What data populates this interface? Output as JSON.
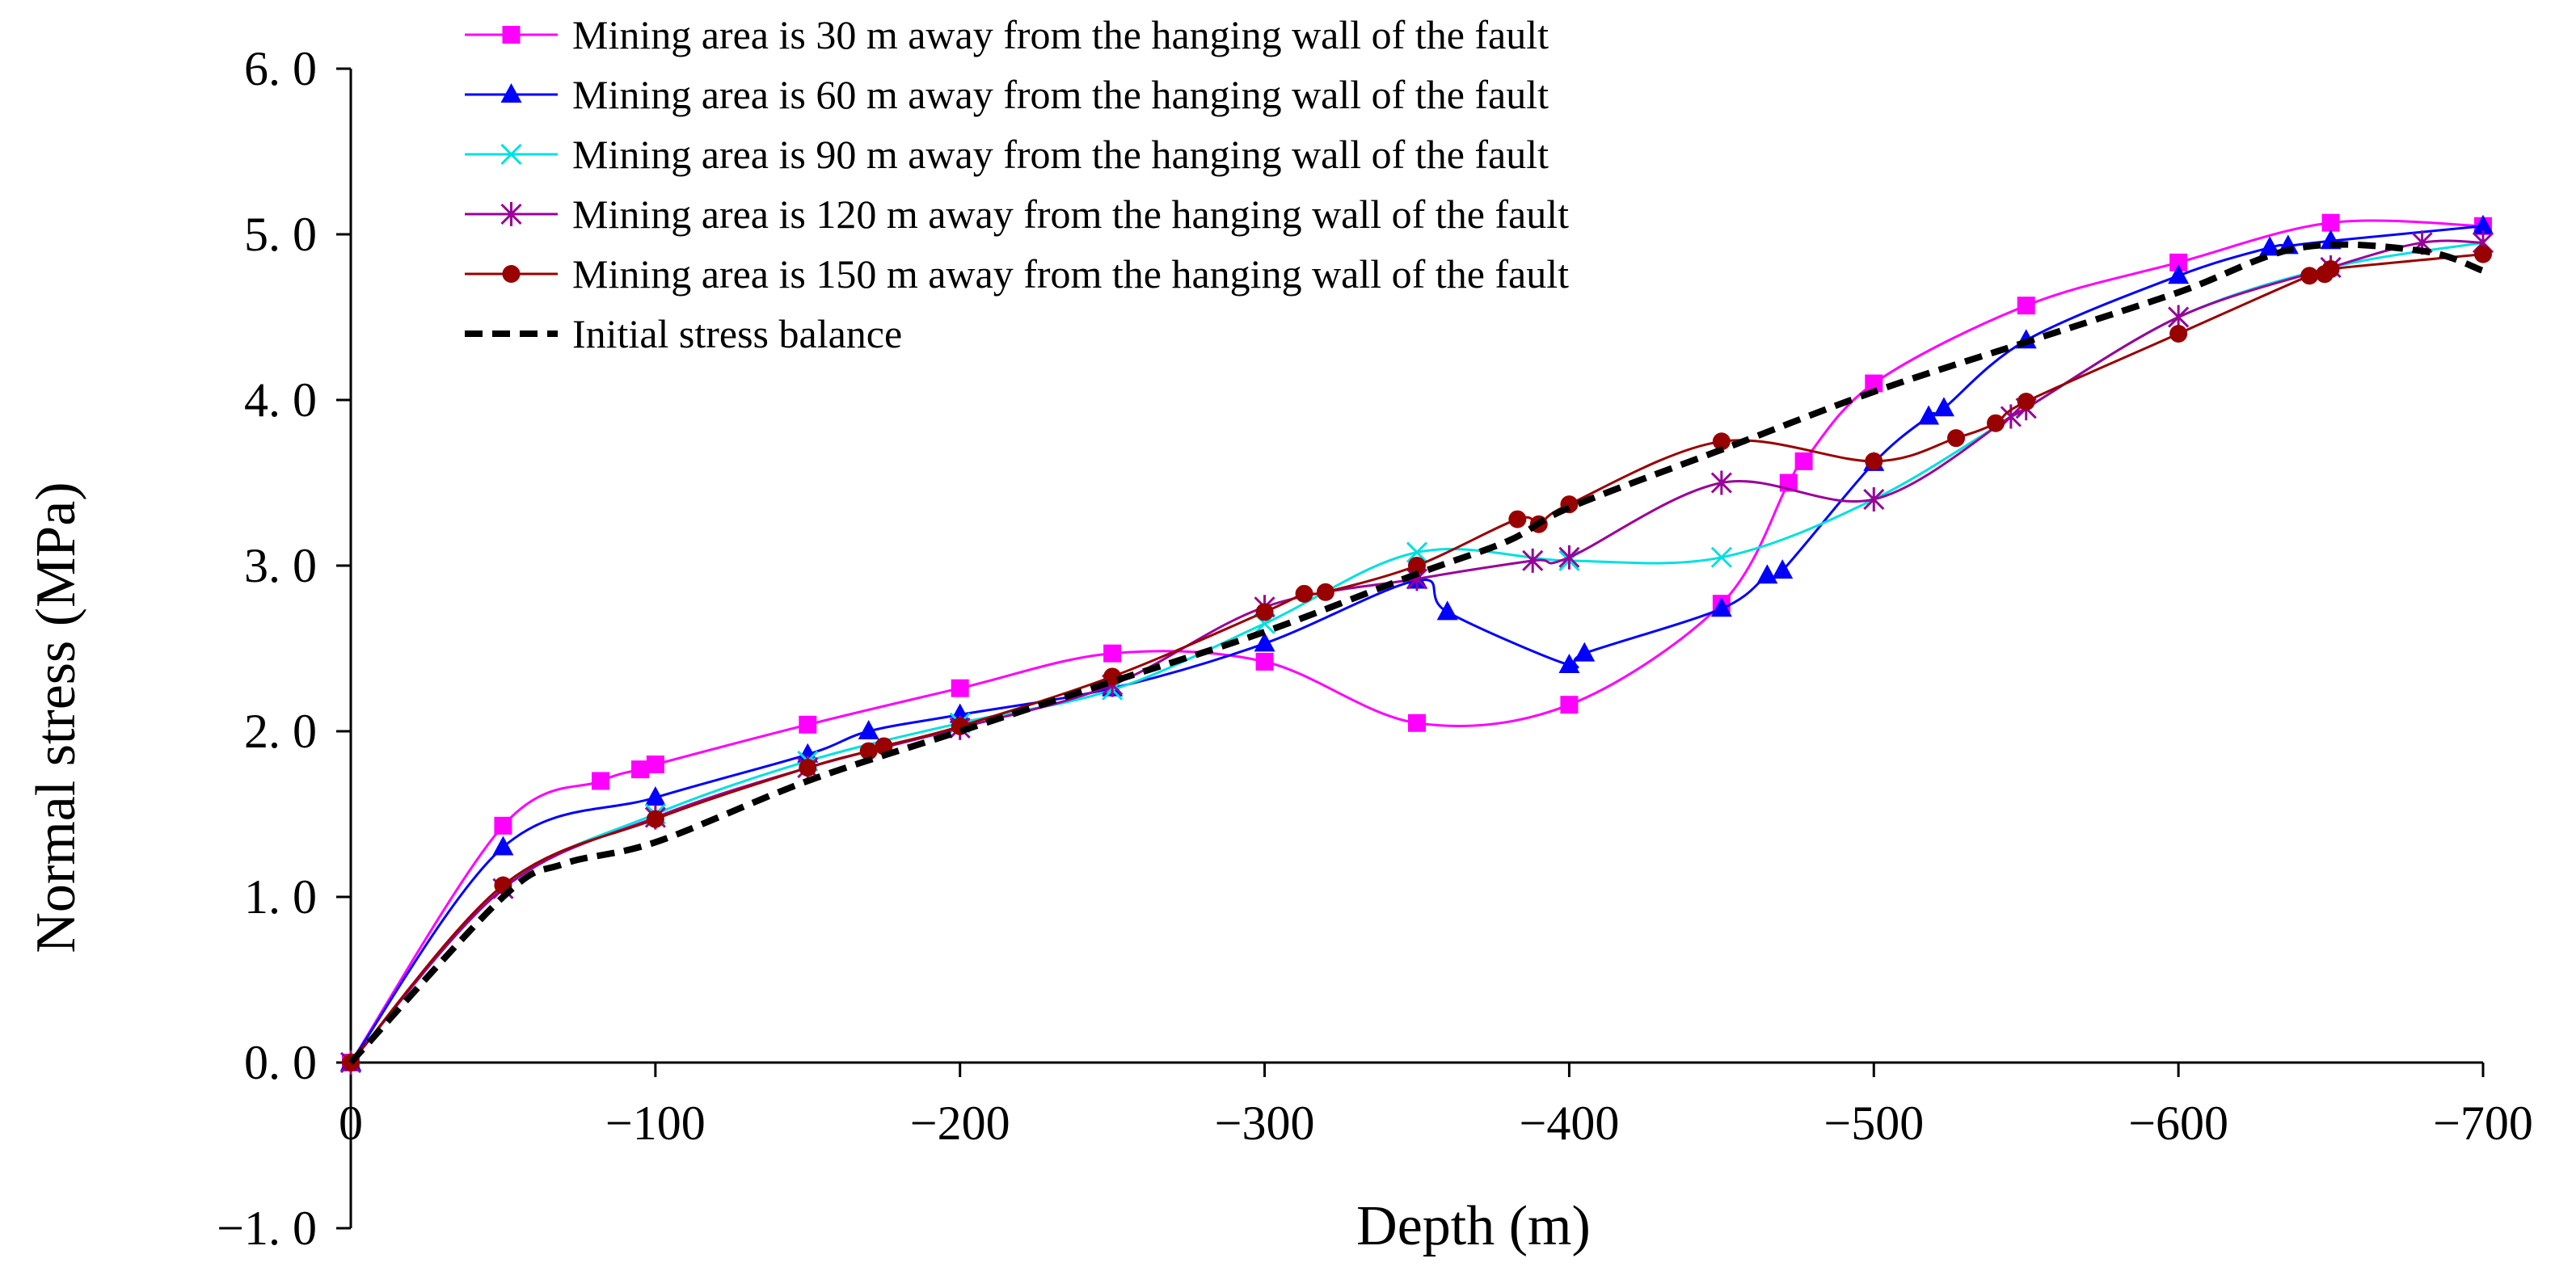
{
  "chart_data": {
    "type": "line",
    "title": "",
    "xlabel": "Depth (m)",
    "ylabel": "Normal stress (MPa)",
    "xlim": [
      0,
      -700
    ],
    "ylim": [
      -1.0,
      6.0
    ],
    "x_ticks": [
      0,
      -100,
      -200,
      -300,
      -400,
      -500,
      -600,
      -700
    ],
    "x_tick_labels": [
      "0",
      "−100",
      "−200",
      "−300",
      "−400",
      "−500",
      "−600",
      "−700"
    ],
    "y_ticks": [
      -1.0,
      0.0,
      1.0,
      2.0,
      3.0,
      4.0,
      5.0,
      6.0
    ],
    "y_tick_labels": [
      "−1. 0",
      "0. 0",
      "1. 0",
      "2. 0",
      "3. 0",
      "4. 0",
      "5. 0",
      "6. 0"
    ],
    "grid": false,
    "legend_position": "top-left",
    "series": [
      {
        "name": "Mining area is 30 m away from the hanging wall of the fault",
        "color": "#ff00ff",
        "marker": "square",
        "dashed": false,
        "x": [
          0,
          -50,
          -82,
          -95,
          -100,
          -150,
          -200,
          -250,
          -300,
          -350,
          -400,
          -450,
          -472,
          -477,
          -500,
          -550,
          -600,
          -650,
          -700
        ],
        "y": [
          0.0,
          1.43,
          1.7,
          1.77,
          1.8,
          2.04,
          2.26,
          2.47,
          2.42,
          2.05,
          2.16,
          2.77,
          3.5,
          3.63,
          4.1,
          4.57,
          4.83,
          5.07,
          5.05
        ]
      },
      {
        "name": "Mining area is 60 m away from the hanging wall of the fault",
        "color": "#0000ff",
        "marker": "triangle",
        "dashed": false,
        "x": [
          0,
          -50,
          -100,
          -150,
          -170,
          -200,
          -250,
          -300,
          -350,
          -360,
          -400,
          -405,
          -450,
          -465,
          -470,
          -500,
          -518,
          -523,
          -550,
          -600,
          -630,
          -636,
          -650,
          -700
        ],
        "y": [
          0.0,
          1.3,
          1.6,
          1.86,
          2.0,
          2.1,
          2.26,
          2.53,
          2.91,
          2.72,
          2.4,
          2.47,
          2.74,
          2.94,
          2.97,
          3.62,
          3.9,
          3.95,
          4.36,
          4.75,
          4.92,
          4.93,
          4.96,
          5.05
        ]
      },
      {
        "name": "Mining area is 90 m away from the hanging wall of the fault",
        "color": "#00e0e0",
        "marker": "x",
        "dashed": false,
        "x": [
          0,
          -50,
          -100,
          -150,
          -200,
          -250,
          -300,
          -350,
          -400,
          -450,
          -500,
          -550,
          -600,
          -650,
          -700
        ],
        "y": [
          0.0,
          1.05,
          1.5,
          1.82,
          2.05,
          2.25,
          2.65,
          3.08,
          3.03,
          3.05,
          3.4,
          3.95,
          4.5,
          4.8,
          4.95
        ]
      },
      {
        "name": "Mining area is 120 m away from the hanging wall of the fault",
        "color": "#990099",
        "marker": "asterisk",
        "dashed": false,
        "x": [
          0,
          -50,
          -100,
          -150,
          -200,
          -250,
          -300,
          -350,
          -388,
          -400,
          -450,
          -500,
          -545,
          -550,
          -600,
          -650,
          -680,
          -700
        ],
        "y": [
          0.0,
          1.05,
          1.48,
          1.78,
          2.02,
          2.28,
          2.75,
          2.92,
          3.03,
          3.05,
          3.5,
          3.4,
          3.9,
          3.95,
          4.5,
          4.8,
          4.95,
          4.95
        ]
      },
      {
        "name": "Mining area is 150 m away from the hanging wall of the fault",
        "color": "#990000",
        "marker": "circle",
        "dashed": false,
        "x": [
          0,
          -50,
          -100,
          -150,
          -170,
          -175,
          -200,
          -250,
          -300,
          -313,
          -320,
          -350,
          -383,
          -390,
          -400,
          -450,
          -500,
          -527,
          -540,
          -550,
          -600,
          -643,
          -648,
          -650,
          -700
        ],
        "y": [
          0.0,
          1.07,
          1.47,
          1.78,
          1.88,
          1.91,
          2.03,
          2.33,
          2.72,
          2.83,
          2.84,
          3.0,
          3.28,
          3.25,
          3.37,
          3.75,
          3.63,
          3.77,
          3.86,
          3.99,
          4.4,
          4.75,
          4.76,
          4.79,
          4.88
        ]
      },
      {
        "name": "Initial stress balance",
        "color": "#000000",
        "marker": "none",
        "dashed": true,
        "x": [
          0,
          -50,
          -70,
          -100,
          -150,
          -200,
          -250,
          -300,
          -350,
          -380,
          -400,
          -450,
          -500,
          -550,
          -600,
          -640,
          -680,
          -700
        ],
        "y": [
          0.0,
          1.0,
          1.2,
          1.33,
          1.7,
          2.0,
          2.3,
          2.6,
          2.95,
          3.15,
          3.35,
          3.7,
          4.05,
          4.35,
          4.65,
          4.92,
          4.9,
          4.78
        ]
      }
    ]
  }
}
